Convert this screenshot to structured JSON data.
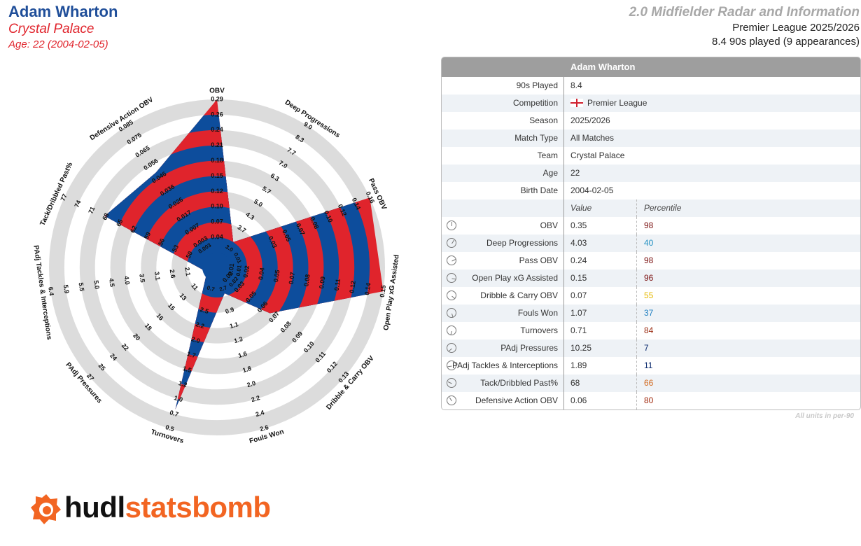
{
  "header": {
    "player_name": "Adam Wharton",
    "team": "Crystal Palace",
    "age_line": "Age: 22 (2004-02-05)",
    "template_title": "2.0 Midfielder Radar and Information",
    "competition_line": "Premier League 2025/2026",
    "played_line": "8.4 90s played (9 appearances)"
  },
  "colors": {
    "blue": "#0d4d9c",
    "red": "#e0242c",
    "ring_gray": "#dcdcdc",
    "name_blue": "#1f4e99"
  },
  "chart_data": {
    "type": "radar",
    "metrics": [
      {
        "name": "OBV",
        "value": 0.35,
        "ticks": [
          "0.04",
          "0.07",
          "0.10",
          "0.12",
          "0.15",
          "0.18",
          "0.21",
          "0.24",
          "0.26",
          "0.29"
        ],
        "fraction": 1.0
      },
      {
        "name": "Deep Progressions",
        "value": 4.03,
        "ticks": [
          "3.7",
          "4.3",
          "5.0",
          "5.7",
          "6.3",
          "7.0",
          "7.7",
          "8.3",
          "9.0"
        ],
        "fraction": 0.1
      },
      {
        "name": "Pass OBV",
        "value": 0.24,
        "ticks": [
          "0.03",
          "0.05",
          "0.07",
          "0.08",
          "0.10",
          "0.12",
          "0.14",
          "0.16"
        ],
        "fraction": 1.0
      },
      {
        "name": "Open Play xG Assisted",
        "value": 0.15,
        "ticks": [
          "0.01",
          "0.02",
          "0.04",
          "0.05",
          "0.07",
          "0.08",
          "0.09",
          "0.11",
          "0.12",
          "0.14",
          "0.15"
        ],
        "fraction": 1.0
      },
      {
        "name": "Dribble & Carry OBV",
        "value": 0.07,
        "ticks": [
          "0.02",
          "0.03",
          "0.05",
          "0.06",
          "0.07",
          "0.08",
          "0.09",
          "0.10",
          "0.11",
          "0.12",
          "0.13"
        ],
        "fraction": 0.36
      },
      {
        "name": "Fouls Won",
        "value": 1.07,
        "ticks": [
          "0.9",
          "1.1",
          "1.3",
          "1.6",
          "1.8",
          "2.0",
          "2.2",
          "2.4",
          "2.6"
        ],
        "fraction": 0.08
      },
      {
        "name": "Turnovers",
        "value": 0.71,
        "ticks": [
          "2.5",
          "2.2",
          "2.0",
          "1.7",
          "1.5",
          "1.2",
          "1.0",
          "0.7",
          "0.5"
        ],
        "fraction": 0.87
      },
      {
        "name": "PAdj Pressures",
        "value": 10.25,
        "ticks": [
          "11",
          "13",
          "15",
          "16",
          "18",
          "20",
          "22",
          "24",
          "25",
          "27"
        ],
        "fraction": 0
      },
      {
        "name": "PAdj Tackles & Interceptions",
        "value": 1.89,
        "ticks": [
          "2.1",
          "2.6",
          "3.1",
          "3.5",
          "4.0",
          "4.5",
          "5.0",
          "5.5",
          "5.9",
          "6.4"
        ],
        "fraction": 0
      },
      {
        "name": "Tack/Dribbled Past%",
        "value": 68,
        "ticks": [
          "50",
          "53",
          "56",
          "59",
          "62",
          "65",
          "68",
          "71",
          "74",
          "77"
        ],
        "fraction": 0.71
      },
      {
        "name": "Defensive Action OBV",
        "value": 0.06,
        "ticks": [
          "0.003",
          "0.007",
          "0.017",
          "0.026",
          "0.036",
          "0.046",
          "0.056",
          "0.065",
          "0.075",
          "0.085"
        ],
        "fraction": 0.64
      }
    ],
    "inner_tick_labels": [
      "0.01",
      "0.02",
      "0.7",
      "2.7",
      "3.0",
      "0.003",
      "0.01"
    ]
  },
  "table": {
    "title": "Adam Wharton",
    "info_rows": [
      {
        "label": "90s Played",
        "value": "8.4"
      },
      {
        "label": "Competition",
        "value": "Premier League",
        "flag": true
      },
      {
        "label": "Season",
        "value": "2025/2026"
      },
      {
        "label": "Match Type",
        "value": "All Matches"
      },
      {
        "label": "Team",
        "value": "Crystal Palace"
      },
      {
        "label": "Age",
        "value": "22"
      },
      {
        "label": "Birth Date",
        "value": "2004-02-05"
      }
    ],
    "value_header": "Value",
    "percentile_header": "Percentile",
    "stat_rows": [
      {
        "label": "OBV",
        "value": "0.35",
        "percentile": "98",
        "pct_color": "#7a1010"
      },
      {
        "label": "Deep Progressions",
        "value": "4.03",
        "percentile": "40",
        "pct_color": "#1f8fc1"
      },
      {
        "label": "Pass OBV",
        "value": "0.24",
        "percentile": "98",
        "pct_color": "#7a1010"
      },
      {
        "label": "Open Play xG Assisted",
        "value": "0.15",
        "percentile": "96",
        "pct_color": "#7a1010"
      },
      {
        "label": "Dribble & Carry OBV",
        "value": "0.07",
        "percentile": "55",
        "pct_color": "#e6b800"
      },
      {
        "label": "Fouls Won",
        "value": "1.07",
        "percentile": "37",
        "pct_color": "#1f7fc1"
      },
      {
        "label": "Turnovers",
        "value": "0.71",
        "percentile": "84",
        "pct_color": "#9a2a10"
      },
      {
        "label": "PAdj Pressures",
        "value": "10.25",
        "percentile": "7",
        "pct_color": "#0a2a6e"
      },
      {
        "label": "PAdj Tackles & Interceptions",
        "value": "1.89",
        "percentile": "11",
        "pct_color": "#0a2a6e"
      },
      {
        "label": "Tack/Dribbled Past%",
        "value": "68",
        "percentile": "66",
        "pct_color": "#d2691e"
      },
      {
        "label": "Defensive Action OBV",
        "value": "0.06",
        "percentile": "80",
        "pct_color": "#a0280c"
      }
    ],
    "footnote": "All units in per-90"
  },
  "logo": {
    "word1": "hudl",
    "word2": "statsbomb"
  }
}
